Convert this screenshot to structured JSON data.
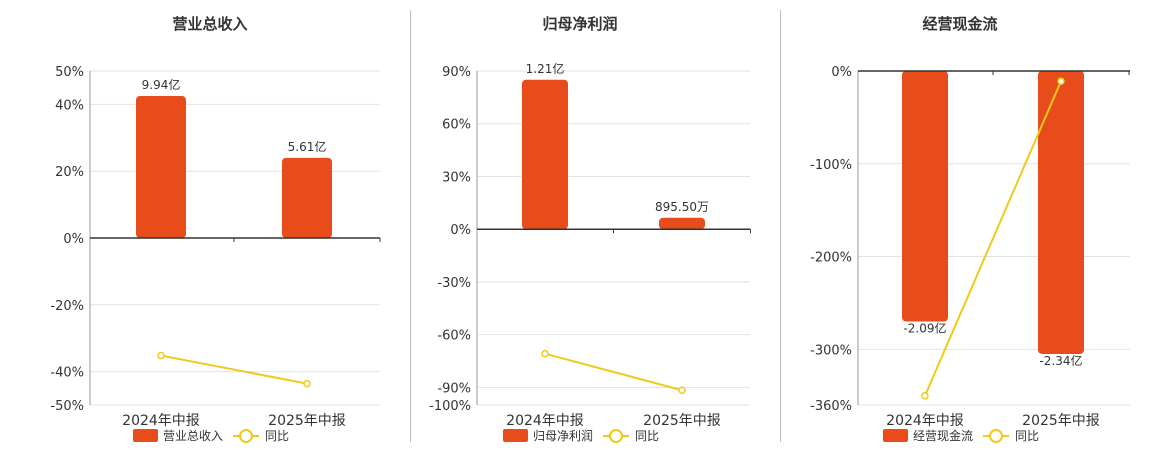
{
  "colors": {
    "bar": "#e84c1b",
    "line": "#f0ca1a",
    "grid": "#e2e2e2",
    "axis": "#333333",
    "text": "#333333"
  },
  "chart_data": [
    {
      "type": "bar",
      "title": "营业总收入",
      "categories": [
        "2024年中报",
        "2025年中报"
      ],
      "ylim": [
        -50,
        50
      ],
      "yticks": [
        "50%",
        "40%",
        "20%",
        "0%",
        "-20%",
        "-40%",
        "-50%"
      ],
      "series": [
        {
          "name": "营业总收入",
          "type": "bar",
          "values": [
            42.5,
            24.0
          ],
          "labels": [
            "9.94亿",
            "5.61亿"
          ]
        },
        {
          "name": "同比",
          "type": "line",
          "values": [
            -35.2,
            -43.6
          ]
        }
      ],
      "legend": "bottom-center"
    },
    {
      "type": "bar",
      "title": "归母净利润",
      "categories": [
        "2024年中报",
        "2025年中报"
      ],
      "ylim": [
        -100,
        90
      ],
      "yticks": [
        "90%",
        "60%",
        "30%",
        "0%",
        "-30%",
        "-60%",
        "-90%",
        "-100%"
      ],
      "series": [
        {
          "name": "归母净利润",
          "type": "bar",
          "values": [
            85.0,
            6.5
          ],
          "labels": [
            "1.21亿",
            "895.50万"
          ]
        },
        {
          "name": "同比",
          "type": "line",
          "values": [
            -70.8,
            -91.6
          ]
        }
      ],
      "legend": "bottom-center"
    },
    {
      "type": "bar",
      "title": "经营现金流",
      "categories": [
        "2024年中报",
        "2025年中报"
      ],
      "ylim": [
        -360,
        0
      ],
      "yticks": [
        "0%",
        "-100%",
        "-200%",
        "-300%",
        "-360%"
      ],
      "series": [
        {
          "name": "经营现金流",
          "type": "bar",
          "values": [
            -270,
            -305
          ],
          "labels": [
            "-2.09亿",
            "-2.34亿"
          ]
        },
        {
          "name": "同比",
          "type": "line",
          "values": [
            -350,
            -11
          ]
        }
      ],
      "legend": "bottom-center"
    }
  ]
}
